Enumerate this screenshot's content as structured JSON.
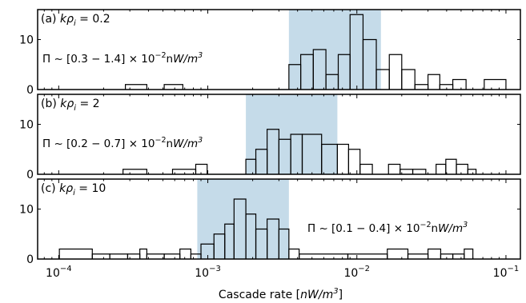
{
  "chart_data": [
    {
      "type": "histogram",
      "panel_label": "(a)",
      "title": "kρi = 0.2",
      "title_parts": {
        "k": "k",
        "rho": "ρ",
        "sub": "i",
        "rest": " = 0.2"
      },
      "annotation": "Π ~ [0.3 − 1.4] × 10−2nW/m3",
      "annotation_parts": {
        "pi": "Π ~ [0.3 − 1.4] × 10",
        "exp": "−2",
        "unit_n": "n",
        "unit_rest": "W/m",
        "unit_exp": "3"
      },
      "ylim": [
        0,
        16
      ],
      "yticks": [
        0,
        10
      ],
      "shaded_range": [
        0.0035,
        0.0145
      ],
      "bins": [
        {
          "x0": 0.00028,
          "x1": 0.00039,
          "count": 1
        },
        {
          "x0": 0.00051,
          "x1": 0.00068,
          "count": 1
        },
        {
          "x0": 0.0035,
          "x1": 0.0042,
          "count": 5
        },
        {
          "x0": 0.0042,
          "x1": 0.0051,
          "count": 7
        },
        {
          "x0": 0.0051,
          "x1": 0.0062,
          "count": 8
        },
        {
          "x0": 0.0062,
          "x1": 0.0075,
          "count": 3
        },
        {
          "x0": 0.0075,
          "x1": 0.009,
          "count": 7
        },
        {
          "x0": 0.009,
          "x1": 0.011,
          "count": 15
        },
        {
          "x0": 0.011,
          "x1": 0.0135,
          "count": 10
        },
        {
          "x0": 0.0135,
          "x1": 0.0165,
          "count": 4
        },
        {
          "x0": 0.0165,
          "x1": 0.02,
          "count": 7
        },
        {
          "x0": 0.02,
          "x1": 0.0245,
          "count": 4
        },
        {
          "x0": 0.0245,
          "x1": 0.03,
          "count": 1
        },
        {
          "x0": 0.03,
          "x1": 0.036,
          "count": 3
        },
        {
          "x0": 0.036,
          "x1": 0.044,
          "count": 1
        },
        {
          "x0": 0.044,
          "x1": 0.054,
          "count": 2
        },
        {
          "x0": 0.0715,
          "x1": 0.1,
          "count": 2
        }
      ]
    },
    {
      "type": "histogram",
      "panel_label": "(b)",
      "title": "kρi = 2",
      "title_parts": {
        "k": "k",
        "rho": "ρ",
        "sub": "i",
        "rest": " = 2"
      },
      "annotation": "Π ~ [0.2 − 0.7] × 10−2nW/m3",
      "annotation_parts": {
        "pi": "Π ~ [0.2 − 0.7] × 10",
        "exp": "−2",
        "unit_n": "n",
        "unit_rest": "W/m",
        "unit_exp": "3"
      },
      "ylim": [
        0,
        16
      ],
      "yticks": [
        0,
        10
      ],
      "shaded_range": [
        0.0018,
        0.0074
      ],
      "bins": [
        {
          "x0": 0.00027,
          "x1": 0.00039,
          "count": 1
        },
        {
          "x0": 0.00058,
          "x1": 0.00083,
          "count": 1
        },
        {
          "x0": 0.00083,
          "x1": 0.00099,
          "count": 2
        },
        {
          "x0": 0.0018,
          "x1": 0.0021,
          "count": 3
        },
        {
          "x0": 0.0021,
          "x1": 0.0025,
          "count": 5
        },
        {
          "x0": 0.0025,
          "x1": 0.003,
          "count": 9
        },
        {
          "x0": 0.003,
          "x1": 0.0036,
          "count": 7
        },
        {
          "x0": 0.0036,
          "x1": 0.0043,
          "count": 8
        },
        {
          "x0": 0.0043,
          "x1": 0.0058,
          "count": 8
        },
        {
          "x0": 0.0058,
          "x1": 0.0074,
          "count": 6
        },
        {
          "x0": 0.0074,
          "x1": 0.0088,
          "count": 6
        },
        {
          "x0": 0.0088,
          "x1": 0.0105,
          "count": 5
        },
        {
          "x0": 0.0105,
          "x1": 0.0127,
          "count": 2
        },
        {
          "x0": 0.0163,
          "x1": 0.0195,
          "count": 2
        },
        {
          "x0": 0.0195,
          "x1": 0.0237,
          "count": 1
        },
        {
          "x0": 0.0237,
          "x1": 0.029,
          "count": 1
        },
        {
          "x0": 0.034,
          "x1": 0.0395,
          "count": 2
        },
        {
          "x0": 0.0395,
          "x1": 0.0465,
          "count": 3
        },
        {
          "x0": 0.0465,
          "x1": 0.0555,
          "count": 2
        },
        {
          "x0": 0.0555,
          "x1": 0.063,
          "count": 1
        }
      ]
    },
    {
      "type": "histogram",
      "panel_label": "(c)",
      "title": "kρi = 10",
      "title_parts": {
        "k": "k",
        "rho": "ρ",
        "sub": "i",
        "rest": " = 10"
      },
      "annotation": "Π ~ [0.1 − 0.4] × 10−2nW/m3",
      "annotation_parts": {
        "pi": "Π ~ [0.1 − 0.4] × 10",
        "exp": "−2",
        "unit_n": "n",
        "unit_rest": "W/m",
        "unit_exp": "3"
      },
      "ylim": [
        0,
        16
      ],
      "yticks": [
        0,
        10
      ],
      "shaded_range": [
        0.00085,
        0.0035
      ],
      "bins": [
        {
          "x0": 0.000101,
          "x1": 0.000168,
          "count": 2
        },
        {
          "x0": 0.000168,
          "x1": 0.00022,
          "count": 1
        },
        {
          "x0": 0.00022,
          "x1": 0.00029,
          "count": 1
        },
        {
          "x0": 0.00029,
          "x1": 0.00035,
          "count": 1
        },
        {
          "x0": 0.00035,
          "x1": 0.00039,
          "count": 2
        },
        {
          "x0": 0.00039,
          "x1": 0.00051,
          "count": 1
        },
        {
          "x0": 0.00051,
          "x1": 0.00065,
          "count": 1
        },
        {
          "x0": 0.00065,
          "x1": 0.00077,
          "count": 2
        },
        {
          "x0": 0.00077,
          "x1": 0.0009,
          "count": 1
        },
        {
          "x0": 0.0009,
          "x1": 0.0011,
          "count": 3
        },
        {
          "x0": 0.0011,
          "x1": 0.0013,
          "count": 5
        },
        {
          "x0": 0.0013,
          "x1": 0.0015,
          "count": 7
        },
        {
          "x0": 0.0015,
          "x1": 0.0018,
          "count": 12
        },
        {
          "x0": 0.0018,
          "x1": 0.0021,
          "count": 9
        },
        {
          "x0": 0.0021,
          "x1": 0.0025,
          "count": 6
        },
        {
          "x0": 0.0025,
          "x1": 0.003,
          "count": 8
        },
        {
          "x0": 0.003,
          "x1": 0.0035,
          "count": 6
        },
        {
          "x0": 0.0035,
          "x1": 0.0041,
          "count": 2
        },
        {
          "x0": 0.0041,
          "x1": 0.0087,
          "count": 1
        },
        {
          "x0": 0.0087,
          "x1": 0.016,
          "count": 1
        },
        {
          "x0": 0.016,
          "x1": 0.022,
          "count": 2
        },
        {
          "x0": 0.022,
          "x1": 0.03,
          "count": 1
        },
        {
          "x0": 0.03,
          "x1": 0.0365,
          "count": 2
        },
        {
          "x0": 0.0365,
          "x1": 0.044,
          "count": 1
        },
        {
          "x0": 0.044,
          "x1": 0.0525,
          "count": 1
        },
        {
          "x0": 0.0525,
          "x1": 0.06,
          "count": 2
        }
      ]
    }
  ],
  "shared_x": {
    "scale": "log",
    "xlim": [
      7.22e-05,
      0.125
    ],
    "xticks": [
      {
        "value": 0.0001,
        "base": "10",
        "exp": "−4"
      },
      {
        "value": 0.001,
        "base": "10",
        "exp": "−3"
      },
      {
        "value": 0.01,
        "base": "10",
        "exp": "−2"
      },
      {
        "value": 0.1,
        "base": "10",
        "exp": "−1"
      }
    ],
    "xlabel_parts": {
      "text": "Cascade rate [",
      "unit": "nW/m",
      "exp": "3",
      "close": "]"
    }
  },
  "colors": {
    "shade": "#c5dbe9",
    "line": "#000000"
  }
}
